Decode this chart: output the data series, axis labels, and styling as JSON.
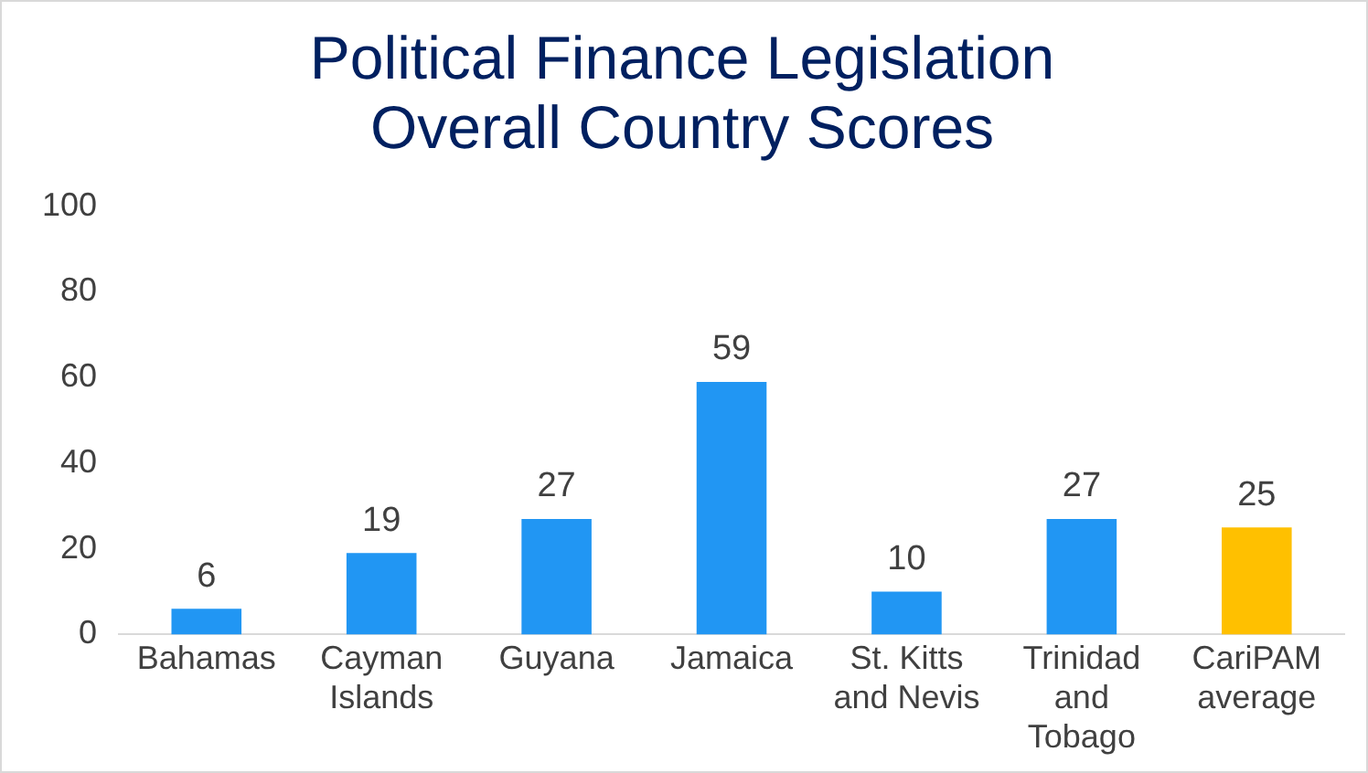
{
  "chart_data": {
    "type": "bar",
    "title": "Political Finance Legislation\nOverall Country Scores",
    "categories": [
      "Bahamas",
      "Cayman Islands",
      "Guyana",
      "Jamaica",
      "St. Kitts and Nevis",
      "Trinidad and Tobago",
      "CariPAM average"
    ],
    "values": [
      6,
      19,
      27,
      59,
      10,
      27,
      25
    ],
    "colors": [
      "#2196f3",
      "#2196f3",
      "#2196f3",
      "#2196f3",
      "#2196f3",
      "#2196f3",
      "#ffc000"
    ],
    "ylim": [
      0,
      100
    ],
    "yticks": [
      0,
      20,
      40,
      60,
      80,
      100
    ],
    "grid": false,
    "legend": false,
    "data_labels": true
  }
}
